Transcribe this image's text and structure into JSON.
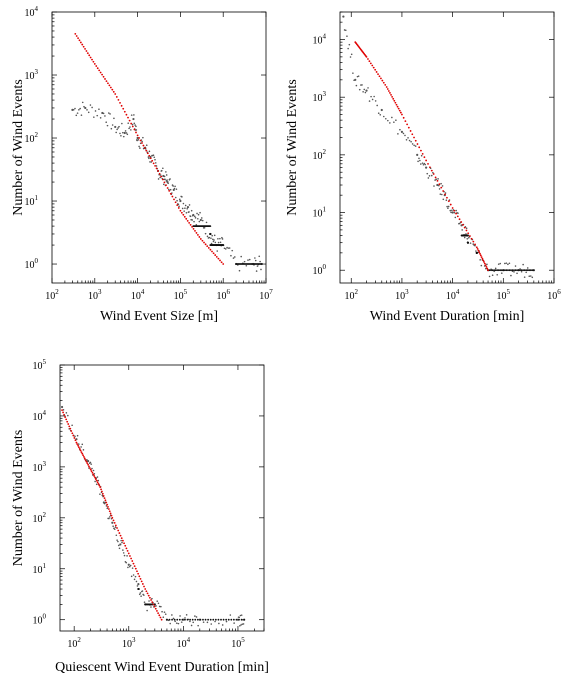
{
  "chart_data": [
    {
      "type": "scatter",
      "xlabel": "Wind Event Size [m]",
      "ylabel": "Number of Wind Events",
      "xscale": "log",
      "yscale": "log",
      "xlim": [
        100,
        10000000
      ],
      "ylim": [
        0.5,
        10000
      ],
      "xticks": [
        {
          "base": "10",
          "exp": "2"
        },
        {
          "base": "10",
          "exp": "3"
        },
        {
          "base": "10",
          "exp": "4"
        },
        {
          "base": "10",
          "exp": "5"
        },
        {
          "base": "10",
          "exp": "6"
        },
        {
          "base": "10",
          "exp": "7"
        }
      ],
      "yticks": [
        {
          "base": "10",
          "exp": "0"
        },
        {
          "base": "10",
          "exp": "1"
        },
        {
          "base": "10",
          "exp": "2"
        },
        {
          "base": "10",
          "exp": "3"
        },
        {
          "base": "10",
          "exp": "4"
        }
      ],
      "colors": {
        "data": "#555555",
        "fit": "#e00000"
      },
      "series": [
        {
          "values": [
            [
              300,
              280
            ],
            [
              600,
              300
            ],
            [
              1500,
              250
            ],
            [
              3000,
              150
            ],
            [
              5000,
              120
            ],
            [
              8000,
              200
            ],
            [
              10000,
              100
            ],
            [
              15000,
              70
            ],
            [
              20000,
              50
            ],
            [
              30000,
              30
            ],
            [
              40000,
              25
            ],
            [
              50000,
              20
            ],
            [
              70000,
              15
            ],
            [
              100000,
              10
            ],
            [
              150000,
              8
            ],
            [
              200000,
              6
            ],
            [
              300000,
              5
            ],
            [
              500000,
              3
            ],
            [
              700000,
              2
            ],
            [
              1000000,
              2
            ],
            [
              2000000,
              1
            ],
            [
              5000000,
              1
            ],
            [
              8000000,
              1
            ]
          ]
        },
        {
          "values": [
            [
              350,
              4500
            ],
            [
              1000,
              1500
            ],
            [
              3000,
              500
            ],
            [
              10000,
              110
            ],
            [
              30000,
              30
            ],
            [
              100000,
              7
            ],
            [
              300000,
              2.5
            ],
            [
              1000000,
              1
            ]
          ]
        }
      ]
    },
    {
      "type": "scatter",
      "xlabel": "Wind Event Duration [min]",
      "ylabel": "Number of Wind Events",
      "xscale": "log",
      "yscale": "log",
      "xlim": [
        60,
        1000000
      ],
      "ylim": [
        0.6,
        30000
      ],
      "xticks": [
        {
          "base": "10",
          "exp": "2"
        },
        {
          "base": "10",
          "exp": "3"
        },
        {
          "base": "10",
          "exp": "4"
        },
        {
          "base": "10",
          "exp": "5"
        },
        {
          "base": "10",
          "exp": "6"
        }
      ],
      "yticks": [
        {
          "base": "10",
          "exp": "0"
        },
        {
          "base": "10",
          "exp": "1"
        },
        {
          "base": "10",
          "exp": "2"
        },
        {
          "base": "10",
          "exp": "3"
        },
        {
          "base": "10",
          "exp": "4"
        }
      ],
      "colors": {
        "data": "#555555",
        "fit": "#e00000"
      },
      "series": [
        {
          "values": [
            [
              70,
              25000
            ],
            [
              120,
              2000
            ],
            [
              200,
              1300
            ],
            [
              400,
              600
            ],
            [
              1000,
              250
            ],
            [
              2000,
              100
            ],
            [
              3000,
              60
            ],
            [
              5000,
              30
            ],
            [
              7000,
              20
            ],
            [
              10000,
              10
            ],
            [
              15000,
              6
            ],
            [
              20000,
              4
            ],
            [
              30000,
              2
            ],
            [
              50000,
              1
            ],
            [
              100000,
              1
            ],
            [
              200000,
              1
            ],
            [
              400000,
              1
            ]
          ]
        },
        {
          "values": [
            [
              120,
              9000
            ],
            [
              200,
              5000
            ],
            [
              500,
              1500
            ],
            [
              1000,
              500
            ],
            [
              3000,
              80
            ],
            [
              10000,
              12
            ],
            [
              30000,
              2.5
            ],
            [
              50000,
              1
            ]
          ]
        }
      ]
    },
    {
      "type": "scatter",
      "xlabel": "Quiescent Wind Event Duration [min]",
      "ylabel": "Number of Wind Events",
      "xscale": "log",
      "yscale": "log",
      "xlim": [
        55,
        300000
      ],
      "ylim": [
        0.6,
        100000
      ],
      "xticks": [
        {
          "base": "10",
          "exp": "2"
        },
        {
          "base": "10",
          "exp": "3"
        },
        {
          "base": "10",
          "exp": "4"
        },
        {
          "base": "10",
          "exp": "5"
        }
      ],
      "yticks": [
        {
          "base": "10",
          "exp": "0"
        },
        {
          "base": "10",
          "exp": "1"
        },
        {
          "base": "10",
          "exp": "2"
        },
        {
          "base": "10",
          "exp": "3"
        },
        {
          "base": "10",
          "exp": "4"
        },
        {
          "base": "10",
          "exp": "5"
        }
      ],
      "colors": {
        "data": "#555555",
        "fit": "#e00000"
      },
      "series": [
        {
          "values": [
            [
              60,
              15000
            ],
            [
              110,
              3500
            ],
            [
              180,
              1300
            ],
            [
              250,
              600
            ],
            [
              350,
              200
            ],
            [
              500,
              80
            ],
            [
              700,
              30
            ],
            [
              1000,
              12
            ],
            [
              1500,
              5
            ],
            [
              2000,
              2
            ],
            [
              3000,
              2
            ],
            [
              5000,
              1
            ],
            [
              10000,
              1
            ],
            [
              20000,
              1
            ],
            [
              100000,
              1
            ],
            [
              130000,
              1
            ]
          ]
        },
        {
          "values": [
            [
              60,
              13000
            ],
            [
              110,
              3000
            ],
            [
              180,
              1100
            ],
            [
              300,
              400
            ],
            [
              500,
              100
            ],
            [
              1000,
              20
            ],
            [
              2000,
              4
            ],
            [
              4000,
              1
            ]
          ]
        }
      ]
    }
  ]
}
